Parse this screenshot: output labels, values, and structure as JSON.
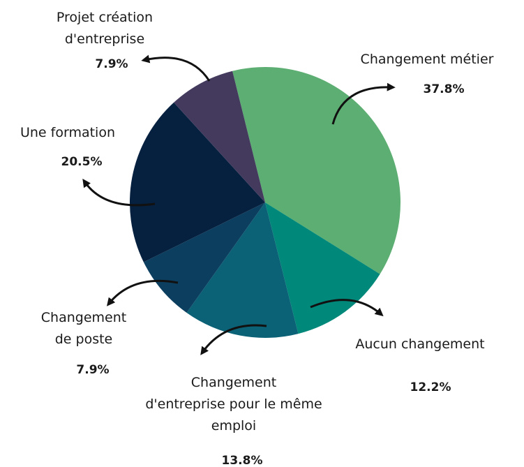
{
  "chart_data": {
    "type": "pie",
    "categories": [
      "Changement métier",
      "Aucun changement",
      "Changement d'entreprise pour le même emploi",
      "Changement de poste",
      "Une formation",
      "Projet création d'entreprise"
    ],
    "values": [
      37.8,
      12.2,
      13.8,
      7.9,
      20.5,
      7.9
    ],
    "value_labels": [
      "37.8%",
      "12.2%",
      "13.8%",
      "7.9%",
      "20.5%",
      "7.9%"
    ],
    "colors": [
      "#5dae72",
      "#00897a",
      "#0b6276",
      "#0b3e5f",
      "#06203f",
      "#433a5e"
    ]
  }
}
